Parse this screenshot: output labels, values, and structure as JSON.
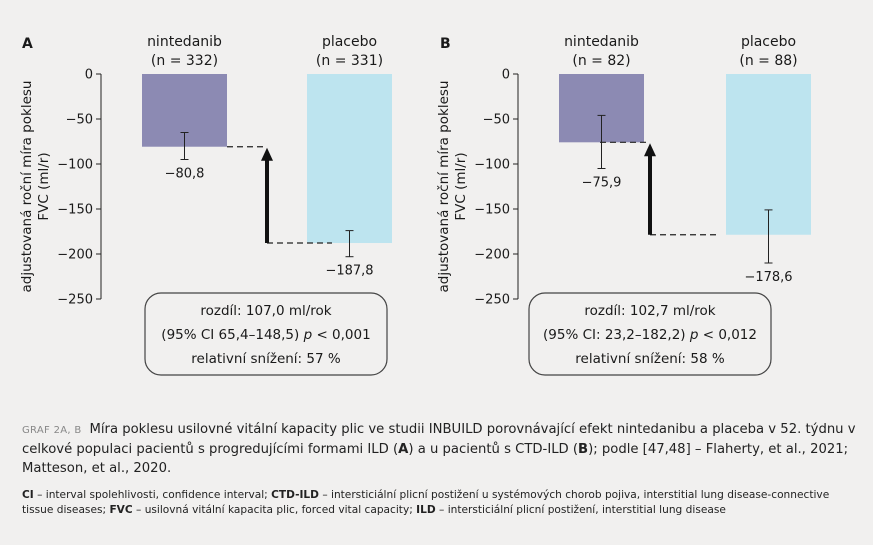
{
  "chart_data": [
    {
      "type": "bar",
      "panel_label": "A",
      "ylabel": "adjustovaná roční míra poklesu FVC (ml/r)",
      "ylim": [
        -250,
        0
      ],
      "yticks": [
        0,
        -50,
        -100,
        -150,
        -200,
        -250
      ],
      "grid": false,
      "categories": [
        "nintedanib",
        "placebo"
      ],
      "category_subtitles": [
        "(n = 332)",
        "(n = 331)"
      ],
      "values": [
        -80.8,
        -187.8
      ],
      "value_labels": [
        "−80,8",
        "−187,8"
      ],
      "error_lower": [
        -95.0,
        -203.0
      ],
      "error_upper": [
        -65.0,
        -174.0
      ],
      "colors": [
        "#8c8ab3",
        "#bde4ef"
      ],
      "annotation": {
        "line1": "rozdíl: 107,0 ml/rok",
        "line2_a": "(95% CI 65,4–148,5) ",
        "p_symbol": "p",
        "line2_b": " < 0,001",
        "line3": "relativní snížení: 57 %"
      }
    },
    {
      "type": "bar",
      "panel_label": "B",
      "ylabel": "adjustovaná roční míra poklesu FVC (ml/r)",
      "ylim": [
        -250,
        0
      ],
      "yticks": [
        0,
        -50,
        -100,
        -150,
        -200,
        -250
      ],
      "grid": false,
      "categories": [
        "nintedanib",
        "placebo"
      ],
      "category_subtitles": [
        "(n = 82)",
        "(n = 88)"
      ],
      "values": [
        -75.9,
        -178.6
      ],
      "value_labels": [
        "−75,9",
        "−178,6"
      ],
      "error_lower": [
        -105.0,
        -210.0
      ],
      "error_upper": [
        -46.0,
        -151.0
      ],
      "colors": [
        "#8c8ab3",
        "#bde4ef"
      ],
      "annotation": {
        "line1": "rozdíl: 102,7 ml/rok",
        "line2_a": "(95% CI: 23,2–182,2) ",
        "p_symbol": "p",
        "line2_b": " < 0,012",
        "line3": "relativní snížení: 58 %"
      }
    }
  ],
  "caption": {
    "tag": "GRAF 2A, B",
    "text_1": "Míra poklesu usilovné vitální kapacity plic ve studii INBUILD porovnávající efekt nintedanibu a placeba v 52. týdnu v celkové populaci pacientů s progredujícími formami ILD (",
    "bold_a": "A",
    "text_2": ") a u pacientů s CTD-ILD (",
    "bold_b": "B",
    "text_3": "); podle [47,48] – Flaherty, et al., 2021; Matteson, et al., 2020."
  },
  "footnote": {
    "t1_b": "CI",
    "t1": " – interval spolehlivosti, confidence interval; ",
    "t2_b": "CTD-ILD",
    "t2": " – intersticiální plicní postižení u systémových chorob pojiva, interstitial lung disease-connective tissue diseases; ",
    "t3_b": "FVC",
    "t3": " – usilovná vitální kapacita plic, forced vital capacity; ",
    "t4_b": "ILD",
    "t4": " – intersticiální plicní postižení, interstitial lung disease"
  }
}
